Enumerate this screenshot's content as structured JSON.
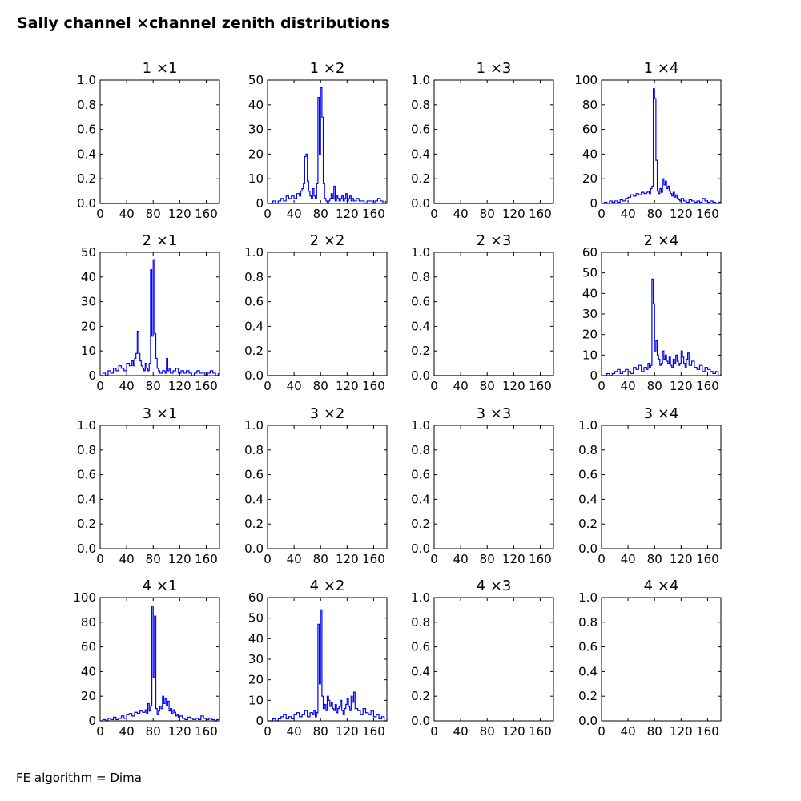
{
  "figure": {
    "title": "Sally channel ×channel zenith distributions",
    "footnote": "FE algorithm = Dima"
  },
  "colors": {
    "line": "#0000ff",
    "axes": "#000000"
  },
  "chart_data": [
    {
      "type": "line",
      "title": "1 ×1",
      "xlim": [
        0,
        180
      ],
      "ylim": [
        0,
        1
      ],
      "xticks": [
        "0",
        "40",
        "80",
        "120",
        "160"
      ],
      "yticks": [
        "0.0",
        "0.2",
        "0.4",
        "0.6",
        "0.8",
        "1.0"
      ],
      "series": [
        {
          "x": [
            0,
            180
          ],
          "y": [
            0,
            0
          ]
        }
      ]
    },
    {
      "type": "line",
      "title": "1 ×2",
      "xlim": [
        0,
        180
      ],
      "ylim": [
        0,
        50
      ],
      "xticks": [
        "0",
        "40",
        "80",
        "120",
        "160"
      ],
      "yticks": [
        "0",
        "10",
        "20",
        "30",
        "40",
        "50"
      ],
      "series": [
        {
          "x": [
            0,
            4,
            8,
            12,
            16,
            20,
            24,
            28,
            32,
            36,
            40,
            44,
            48,
            50,
            52,
            54,
            56,
            58,
            60,
            62,
            64,
            66,
            68,
            70,
            72,
            74,
            76,
            78,
            80,
            82,
            84,
            86,
            88,
            90,
            92,
            94,
            96,
            98,
            100,
            102,
            104,
            106,
            108,
            110,
            112,
            114,
            116,
            118,
            120,
            122,
            124,
            126,
            128,
            130,
            134,
            138,
            142,
            146,
            150,
            154,
            158,
            162,
            166,
            170,
            174,
            178
          ],
          "y": [
            0,
            0,
            1,
            0,
            1,
            2,
            1,
            3,
            2,
            3,
            2,
            4,
            3,
            5,
            6,
            8,
            19,
            20,
            9,
            5,
            3,
            2,
            6,
            3,
            2,
            8,
            43,
            20,
            47,
            35,
            8,
            2,
            1,
            0,
            1,
            2,
            4,
            2,
            7,
            1,
            3,
            2,
            1,
            2,
            3,
            1,
            2,
            4,
            1,
            2,
            3,
            1,
            2,
            1,
            2,
            1,
            1,
            0,
            1,
            1,
            0,
            1,
            2,
            1,
            0,
            1
          ]
        }
      ]
    },
    {
      "type": "line",
      "title": "1 ×3",
      "xlim": [
        0,
        180
      ],
      "ylim": [
        0,
        1
      ],
      "xticks": [
        "0",
        "40",
        "80",
        "120",
        "160"
      ],
      "yticks": [
        "0.0",
        "0.2",
        "0.4",
        "0.6",
        "0.8",
        "1.0"
      ],
      "series": [
        {
          "x": [
            0,
            180
          ],
          "y": [
            0,
            0
          ]
        }
      ]
    },
    {
      "type": "line",
      "title": "1 ×4",
      "xlim": [
        0,
        180
      ],
      "ylim": [
        0,
        100
      ],
      "xticks": [
        "0",
        "40",
        "80",
        "120",
        "160"
      ],
      "yticks": [
        "0",
        "20",
        "40",
        "60",
        "80",
        "100"
      ],
      "series": [
        {
          "x": [
            0,
            4,
            8,
            12,
            16,
            20,
            24,
            28,
            32,
            36,
            40,
            44,
            48,
            52,
            56,
            60,
            64,
            68,
            70,
            72,
            74,
            76,
            78,
            80,
            82,
            84,
            86,
            88,
            90,
            92,
            94,
            96,
            98,
            100,
            102,
            104,
            106,
            108,
            110,
            112,
            114,
            116,
            118,
            120,
            124,
            128,
            132,
            136,
            140,
            144,
            148,
            152,
            156,
            160,
            164,
            168,
            172,
            176,
            180
          ],
          "y": [
            0,
            1,
            0,
            2,
            1,
            2,
            1,
            3,
            2,
            4,
            5,
            7,
            6,
            8,
            7,
            9,
            8,
            9,
            10,
            8,
            12,
            14,
            93,
            85,
            35,
            10,
            8,
            12,
            9,
            20,
            15,
            18,
            12,
            14,
            10,
            8,
            6,
            9,
            5,
            7,
            4,
            3,
            2,
            4,
            2,
            1,
            3,
            2,
            1,
            2,
            1,
            4,
            2,
            1,
            2,
            1,
            0,
            1,
            0
          ]
        }
      ]
    },
    {
      "type": "line",
      "title": "2 ×1",
      "xlim": [
        0,
        180
      ],
      "ylim": [
        0,
        50
      ],
      "xticks": [
        "0",
        "40",
        "80",
        "120",
        "160"
      ],
      "yticks": [
        "0",
        "10",
        "20",
        "30",
        "40",
        "50"
      ],
      "series": [
        {
          "x": [
            0,
            4,
            8,
            12,
            16,
            20,
            24,
            28,
            32,
            36,
            40,
            44,
            48,
            50,
            52,
            54,
            56,
            58,
            60,
            62,
            64,
            66,
            68,
            70,
            72,
            74,
            76,
            78,
            80,
            82,
            84,
            86,
            88,
            90,
            94,
            98,
            100,
            102,
            104,
            106,
            110,
            114,
            118,
            122,
            126,
            130,
            134,
            138,
            142,
            146,
            150,
            154,
            158,
            162,
            166,
            170,
            174,
            178
          ],
          "y": [
            0,
            1,
            0,
            2,
            1,
            3,
            2,
            4,
            3,
            2,
            5,
            4,
            6,
            4,
            7,
            9,
            18,
            9,
            6,
            4,
            3,
            2,
            5,
            3,
            2,
            5,
            43,
            16,
            47,
            17,
            7,
            3,
            2,
            1,
            2,
            1,
            7,
            2,
            3,
            1,
            2,
            3,
            1,
            2,
            1,
            2,
            1,
            0,
            1,
            2,
            1,
            1,
            0,
            1,
            2,
            1,
            0,
            1
          ]
        }
      ]
    },
    {
      "type": "line",
      "title": "2 ×2",
      "xlim": [
        0,
        180
      ],
      "ylim": [
        0,
        1
      ],
      "xticks": [
        "0",
        "40",
        "80",
        "120",
        "160"
      ],
      "yticks": [
        "0.0",
        "0.2",
        "0.4",
        "0.6",
        "0.8",
        "1.0"
      ],
      "series": [
        {
          "x": [
            0,
            180
          ],
          "y": [
            0,
            0
          ]
        }
      ]
    },
    {
      "type": "line",
      "title": "2 ×3",
      "xlim": [
        0,
        180
      ],
      "ylim": [
        0,
        1
      ],
      "xticks": [
        "0",
        "40",
        "80",
        "120",
        "160"
      ],
      "yticks": [
        "0.0",
        "0.2",
        "0.4",
        "0.6",
        "0.8",
        "1.0"
      ],
      "series": [
        {
          "x": [
            0,
            180
          ],
          "y": [
            0,
            0
          ]
        }
      ]
    },
    {
      "type": "line",
      "title": "2 ×4",
      "xlim": [
        0,
        180
      ],
      "ylim": [
        0,
        60
      ],
      "xticks": [
        "0",
        "40",
        "80",
        "120",
        "160"
      ],
      "yticks": [
        "0",
        "10",
        "20",
        "30",
        "40",
        "50",
        "60"
      ],
      "series": [
        {
          "x": [
            0,
            4,
            8,
            12,
            16,
            20,
            24,
            28,
            32,
            36,
            40,
            44,
            48,
            52,
            56,
            60,
            64,
            68,
            70,
            72,
            74,
            76,
            78,
            80,
            82,
            84,
            86,
            88,
            90,
            92,
            94,
            96,
            98,
            100,
            102,
            104,
            106,
            108,
            110,
            112,
            114,
            116,
            118,
            120,
            122,
            124,
            126,
            128,
            130,
            132,
            136,
            140,
            144,
            148,
            152,
            156,
            160,
            164,
            168,
            172,
            176,
            180
          ],
          "y": [
            0,
            0,
            1,
            0,
            1,
            2,
            3,
            1,
            2,
            3,
            2,
            1,
            4,
            3,
            5,
            2,
            4,
            3,
            6,
            4,
            5,
            47,
            35,
            12,
            17,
            10,
            8,
            5,
            6,
            12,
            8,
            10,
            7,
            6,
            9,
            5,
            4,
            8,
            6,
            10,
            7,
            5,
            6,
            12,
            9,
            6,
            4,
            8,
            11,
            5,
            7,
            4,
            3,
            5,
            2,
            4,
            3,
            2,
            1,
            2,
            0,
            1
          ]
        }
      ]
    },
    {
      "type": "line",
      "title": "3 ×1",
      "xlim": [
        0,
        180
      ],
      "ylim": [
        0,
        1
      ],
      "xticks": [
        "0",
        "40",
        "80",
        "120",
        "160"
      ],
      "yticks": [
        "0.0",
        "0.2",
        "0.4",
        "0.6",
        "0.8",
        "1.0"
      ],
      "series": []
    },
    {
      "type": "line",
      "title": "3 ×2",
      "xlim": [
        0,
        180
      ],
      "ylim": [
        0,
        1
      ],
      "xticks": [
        "0",
        "40",
        "80",
        "120",
        "160"
      ],
      "yticks": [
        "0.0",
        "0.2",
        "0.4",
        "0.6",
        "0.8",
        "1.0"
      ],
      "series": []
    },
    {
      "type": "line",
      "title": "3 ×3",
      "xlim": [
        0,
        180
      ],
      "ylim": [
        0,
        1
      ],
      "xticks": [
        "0",
        "40",
        "80",
        "120",
        "160"
      ],
      "yticks": [
        "0.0",
        "0.2",
        "0.4",
        "0.6",
        "0.8",
        "1.0"
      ],
      "series": []
    },
    {
      "type": "line",
      "title": "3 ×4",
      "xlim": [
        0,
        180
      ],
      "ylim": [
        0,
        1
      ],
      "xticks": [
        "0",
        "40",
        "80",
        "120",
        "160"
      ],
      "yticks": [
        "0.0",
        "0.2",
        "0.4",
        "0.6",
        "0.8",
        "1.0"
      ],
      "series": []
    },
    {
      "type": "line",
      "title": "4 ×1",
      "xlim": [
        0,
        180
      ],
      "ylim": [
        0,
        100
      ],
      "xticks": [
        "0",
        "40",
        "80",
        "120",
        "160"
      ],
      "yticks": [
        "0",
        "20",
        "40",
        "60",
        "80",
        "100"
      ],
      "series": [
        {
          "x": [
            0,
            4,
            8,
            12,
            16,
            20,
            24,
            28,
            32,
            36,
            40,
            44,
            48,
            52,
            56,
            60,
            64,
            68,
            70,
            72,
            74,
            76,
            78,
            80,
            82,
            84,
            86,
            88,
            90,
            92,
            94,
            96,
            98,
            100,
            102,
            104,
            106,
            108,
            110,
            112,
            114,
            116,
            118,
            120,
            124,
            128,
            132,
            136,
            140,
            144,
            148,
            152,
            156,
            160,
            164,
            168,
            172,
            176,
            180
          ],
          "y": [
            0,
            1,
            0,
            2,
            1,
            3,
            1,
            2,
            4,
            2,
            5,
            6,
            4,
            7,
            6,
            8,
            7,
            9,
            6,
            14,
            8,
            12,
            93,
            35,
            85,
            10,
            5,
            8,
            12,
            10,
            20,
            14,
            18,
            12,
            16,
            8,
            10,
            6,
            9,
            7,
            4,
            5,
            3,
            4,
            2,
            1,
            3,
            2,
            1,
            2,
            1,
            4,
            2,
            1,
            2,
            1,
            0,
            1,
            0
          ]
        }
      ]
    },
    {
      "type": "line",
      "title": "4 ×2",
      "xlim": [
        0,
        180
      ],
      "ylim": [
        0,
        60
      ],
      "xticks": [
        "0",
        "40",
        "80",
        "120",
        "160"
      ],
      "yticks": [
        "0",
        "10",
        "20",
        "30",
        "40",
        "50",
        "60"
      ],
      "series": [
        {
          "x": [
            0,
            4,
            8,
            12,
            16,
            20,
            24,
            28,
            32,
            36,
            40,
            44,
            48,
            52,
            56,
            60,
            64,
            68,
            70,
            72,
            74,
            76,
            78,
            80,
            82,
            84,
            86,
            88,
            90,
            92,
            94,
            96,
            98,
            100,
            102,
            104,
            106,
            108,
            110,
            112,
            114,
            116,
            118,
            120,
            122,
            124,
            126,
            128,
            130,
            132,
            136,
            140,
            144,
            148,
            152,
            156,
            160,
            164,
            168,
            172,
            176,
            180
          ],
          "y": [
            0,
            0,
            1,
            0,
            1,
            2,
            3,
            1,
            2,
            1,
            3,
            4,
            2,
            3,
            5,
            2,
            4,
            3,
            5,
            2,
            4,
            47,
            18,
            54,
            12,
            6,
            8,
            5,
            12,
            10,
            7,
            9,
            6,
            5,
            8,
            4,
            6,
            7,
            10,
            5,
            3,
            6,
            8,
            11,
            7,
            5,
            12,
            9,
            14,
            6,
            5,
            3,
            6,
            4,
            3,
            5,
            2,
            3,
            1,
            2,
            0,
            1
          ]
        }
      ]
    },
    {
      "type": "line",
      "title": "4 ×3",
      "xlim": [
        0,
        180
      ],
      "ylim": [
        0,
        1
      ],
      "xticks": [
        "0",
        "40",
        "80",
        "120",
        "160"
      ],
      "yticks": [
        "0.0",
        "0.2",
        "0.4",
        "0.6",
        "0.8",
        "1.0"
      ],
      "series": []
    },
    {
      "type": "line",
      "title": "4 ×4",
      "xlim": [
        0,
        180
      ],
      "ylim": [
        0,
        1
      ],
      "xticks": [
        "0",
        "40",
        "80",
        "120",
        "160"
      ],
      "yticks": [
        "0.0",
        "0.2",
        "0.4",
        "0.6",
        "0.8",
        "1.0"
      ],
      "series": []
    }
  ]
}
